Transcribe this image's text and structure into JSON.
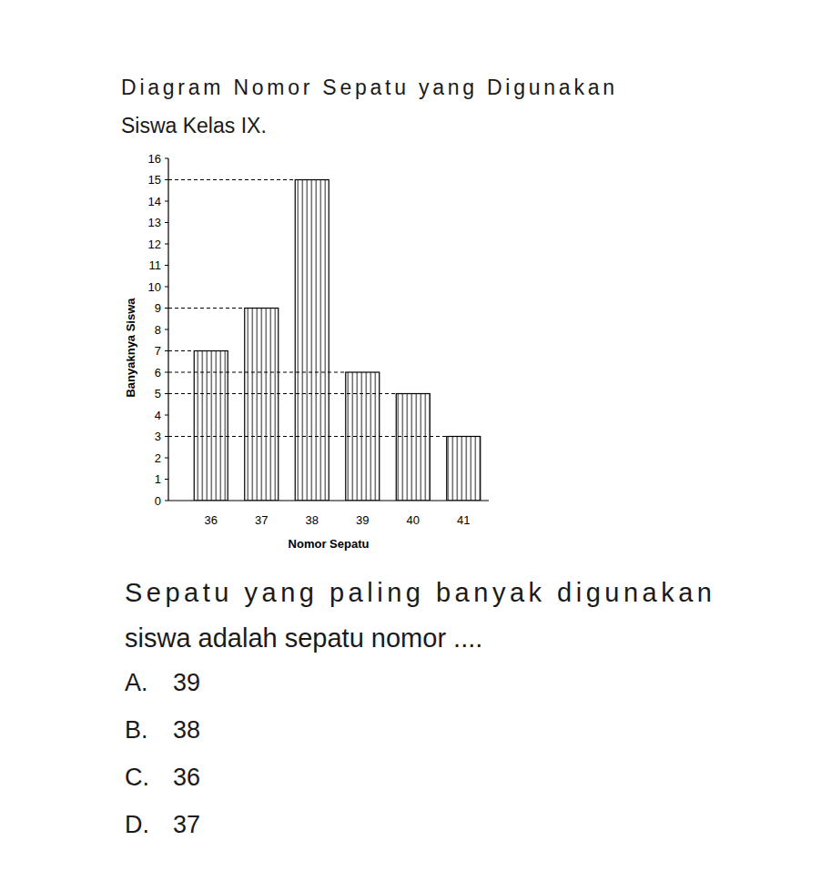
{
  "chart_data": {
    "type": "bar",
    "title": [
      "Diagram Nomor Sepatu yang Digunakan",
      "Siswa Kelas IX."
    ],
    "x_label": "Nomor Sepatu",
    "y_label": "Banyaknya Siswa",
    "categories": [
      "36",
      "37",
      "38",
      "39",
      "40",
      "41"
    ],
    "values": [
      7,
      9,
      15,
      6,
      5,
      3
    ],
    "color": "#000000",
    "ylim": [
      0,
      16
    ],
    "yticks": [
      0,
      1,
      2,
      3,
      4,
      5,
      6,
      7,
      8,
      9,
      10,
      11,
      12,
      13,
      14,
      15,
      16
    ],
    "grid": false
  },
  "question": [
    "Sepatu yang paling banyak digunakan",
    "siswa adalah sepatu nomor ...."
  ],
  "options": [
    {
      "label": "A.",
      "value": 39
    },
    {
      "label": "B.",
      "value": 38
    },
    {
      "label": "C.",
      "value": 36
    },
    {
      "label": "D.",
      "value": 37
    }
  ]
}
